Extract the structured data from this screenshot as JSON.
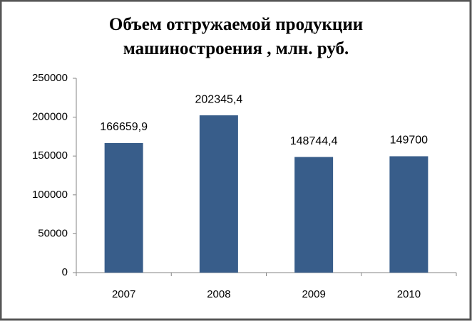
{
  "chart_data": {
    "type": "bar",
    "title": "Объем отгружаемой продукции машиностроения , млн. руб.",
    "categories": [
      "2007",
      "2008",
      "2009",
      "2010"
    ],
    "values": [
      166659.9,
      202345.4,
      148744.4,
      149700
    ],
    "value_labels": [
      "166659,9",
      "202345,4",
      "148744,4",
      "149700"
    ],
    "color": "#385d8a",
    "ylim": [
      0,
      250000
    ],
    "yticks": [
      0,
      50000,
      100000,
      150000,
      200000,
      250000
    ],
    "grid": false
  }
}
